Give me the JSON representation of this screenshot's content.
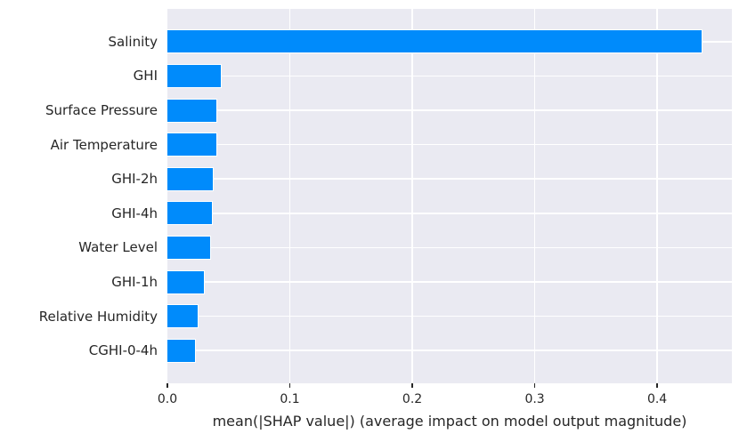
{
  "chart_data": {
    "type": "bar",
    "orientation": "horizontal",
    "title": "",
    "xlabel": "mean(|SHAP value|) (average impact on model output magnitude)",
    "ylabel": "",
    "categories": [
      "Salinity",
      "GHI",
      "Surface Pressure",
      "Air Temperature",
      "GHI-2h",
      "GHI-4h",
      "Water Level",
      "GHI-1h",
      "Relative Humidity",
      "CGHI-0-4h"
    ],
    "values": [
      0.437,
      0.0443,
      0.0409,
      0.0405,
      0.0376,
      0.0369,
      0.0353,
      0.0303,
      0.0251,
      0.0234
    ],
    "xlim": [
      0,
      0.461
    ],
    "xticks": [
      0.0,
      0.1,
      0.2,
      0.3,
      0.4
    ],
    "xtick_labels": [
      "0.0",
      "0.1",
      "0.2",
      "0.3",
      "0.4"
    ],
    "grid": true,
    "legend": null,
    "colors": {
      "bar": "#008bfb",
      "bar_edge": "#ffffff",
      "plot_background": "#eaeaf2",
      "gridline": "#ffffff",
      "text": "#262626",
      "tick_mark": "#262626",
      "figure_background": "#ffffff"
    }
  }
}
